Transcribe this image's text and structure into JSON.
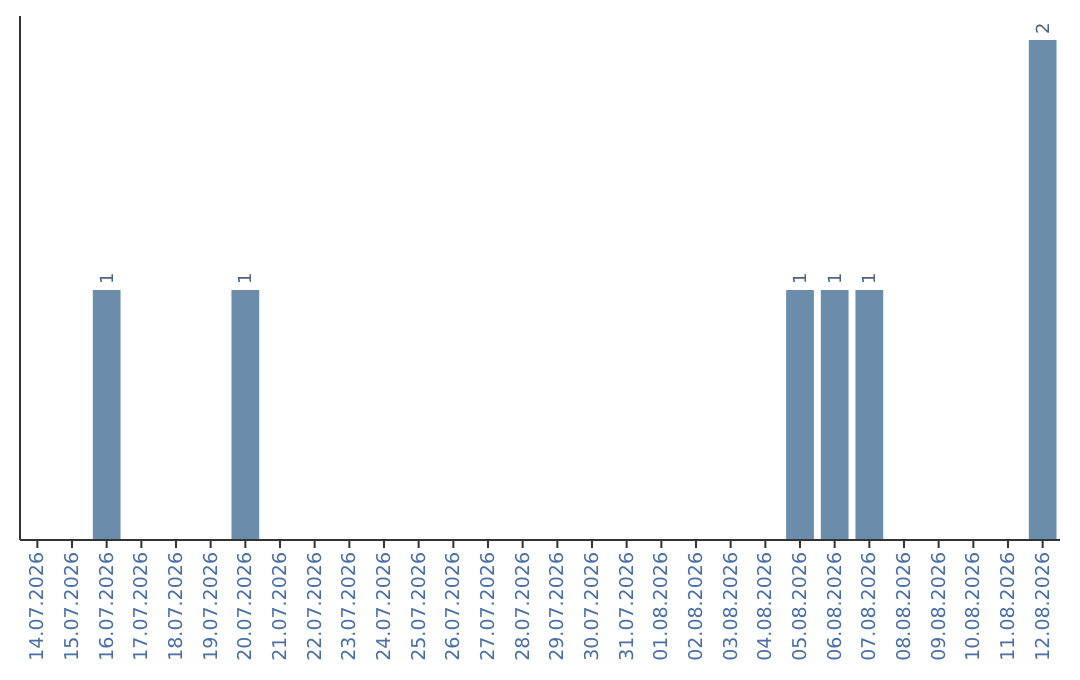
{
  "chart_data": {
    "type": "bar",
    "categories": [
      "14.07.2026",
      "15.07.2026",
      "16.07.2026",
      "17.07.2026",
      "18.07.2026",
      "19.07.2026",
      "20.07.2026",
      "21.07.2026",
      "22.07.2026",
      "23.07.2026",
      "24.07.2026",
      "25.07.2026",
      "26.07.2026",
      "27.07.2026",
      "28.07.2026",
      "29.07.2026",
      "30.07.2026",
      "31.07.2026",
      "01.08.2026",
      "02.08.2026",
      "03.08.2026",
      "04.08.2026",
      "05.08.2026",
      "06.08.2026",
      "07.08.2026",
      "08.08.2026",
      "09.08.2026",
      "10.08.2026",
      "11.08.2026",
      "12.08.2026"
    ],
    "values": [
      0,
      0,
      1,
      0,
      0,
      0,
      1,
      0,
      0,
      0,
      0,
      0,
      0,
      0,
      0,
      0,
      0,
      0,
      0,
      0,
      0,
      0,
      1,
      1,
      1,
      0,
      0,
      0,
      0,
      2
    ],
    "value_labels": [
      null,
      null,
      "1",
      null,
      null,
      null,
      "1",
      null,
      null,
      null,
      null,
      null,
      null,
      null,
      null,
      null,
      null,
      null,
      null,
      null,
      null,
      null,
      "1",
      "1",
      "1",
      null,
      null,
      null,
      null,
      "2"
    ],
    "color": "#6b8cab"
  }
}
